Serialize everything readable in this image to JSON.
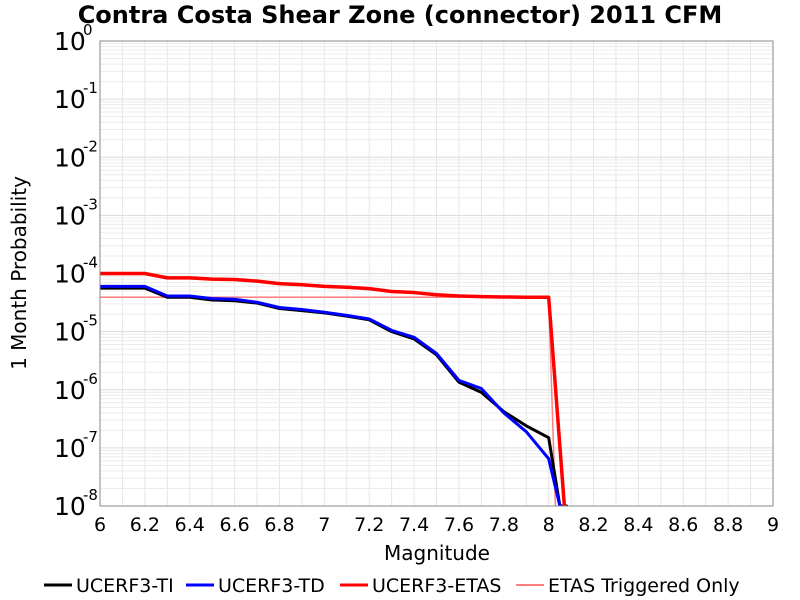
{
  "chart_data": {
    "type": "line",
    "title": "Contra Costa Shear Zone (connector) 2011 CFM",
    "xlabel": "Magnitude",
    "ylabel": "1 Month Probability",
    "xlim": [
      6,
      9
    ],
    "ylim": [
      1e-08,
      1
    ],
    "y_scale": "log",
    "grid": true,
    "legend_position": "bottom",
    "x_ticks": [
      "6",
      "6.2",
      "6.4",
      "6.6",
      "6.8",
      "7",
      "7.2",
      "7.4",
      "7.6",
      "7.8",
      "8",
      "8.2",
      "8.4",
      "8.6",
      "8.8",
      "9"
    ],
    "y_ticks": [
      {
        "base": "10",
        "exp": "0"
      },
      {
        "base": "10",
        "exp": "-1"
      },
      {
        "base": "10",
        "exp": "-2"
      },
      {
        "base": "10",
        "exp": "-3"
      },
      {
        "base": "10",
        "exp": "-4"
      },
      {
        "base": "10",
        "exp": "-5"
      },
      {
        "base": "10",
        "exp": "-6"
      },
      {
        "base": "10",
        "exp": "-7"
      },
      {
        "base": "10",
        "exp": "-8"
      }
    ],
    "series": [
      {
        "name": "UCERF3-TI",
        "color": "#000000",
        "width": 3,
        "x": [
          6.0,
          6.1,
          6.2,
          6.3,
          6.4,
          6.5,
          6.6,
          6.7,
          6.8,
          6.9,
          7.0,
          7.1,
          7.2,
          7.3,
          7.4,
          7.5,
          7.6,
          7.7,
          7.8,
          7.9,
          8.0,
          8.05,
          8.08
        ],
        "y": [
          5.6e-05,
          5.6e-05,
          5.6e-05,
          3.9e-05,
          3.9e-05,
          3.5e-05,
          3.4e-05,
          3.1e-05,
          2.5e-05,
          2.3e-05,
          2.1e-05,
          1.85e-05,
          1.6e-05,
          1e-05,
          7.5e-06,
          4e-06,
          1.35e-06,
          9e-07,
          4.2e-07,
          2.4e-07,
          1.5e-07,
          1e-08,
          1e-08
        ]
      },
      {
        "name": "UCERF3-TD",
        "color": "#0000ff",
        "width": 3,
        "x": [
          6.0,
          6.1,
          6.2,
          6.3,
          6.4,
          6.5,
          6.6,
          6.7,
          6.8,
          6.9,
          7.0,
          7.1,
          7.2,
          7.3,
          7.4,
          7.5,
          7.6,
          7.7,
          7.8,
          7.9,
          8.0,
          8.05
        ],
        "y": [
          6e-05,
          6e-05,
          6e-05,
          4.1e-05,
          4.1e-05,
          3.7e-05,
          3.6e-05,
          3.2e-05,
          2.6e-05,
          2.4e-05,
          2.15e-05,
          1.9e-05,
          1.65e-05,
          1.05e-05,
          8e-06,
          4.2e-06,
          1.45e-06,
          1.05e-06,
          4e-07,
          1.9e-07,
          6.5e-08,
          1e-08
        ]
      },
      {
        "name": "UCERF3-ETAS",
        "color": "#ff0000",
        "width": 3.5,
        "x": [
          6.0,
          6.1,
          6.2,
          6.3,
          6.4,
          6.5,
          6.6,
          6.7,
          6.8,
          6.9,
          7.0,
          7.1,
          7.2,
          7.3,
          7.4,
          7.5,
          7.6,
          7.7,
          7.8,
          7.9,
          8.0,
          8.07
        ],
        "y": [
          0.0001,
          0.0001,
          0.0001,
          8.4e-05,
          8.4e-05,
          8e-05,
          7.9e-05,
          7.4e-05,
          6.7e-05,
          6.4e-05,
          6e-05,
          5.8e-05,
          5.5e-05,
          4.9e-05,
          4.7e-05,
          4.3e-05,
          4.1e-05,
          4e-05,
          3.95e-05,
          3.9e-05,
          3.9e-05,
          1e-08
        ]
      },
      {
        "name": "ETAS Triggered Only",
        "color": "#ff8080",
        "width": 1.5,
        "x": [
          6.0,
          8.0,
          8.03
        ],
        "y": [
          3.9e-05,
          3.9e-05,
          1e-08
        ]
      }
    ]
  }
}
